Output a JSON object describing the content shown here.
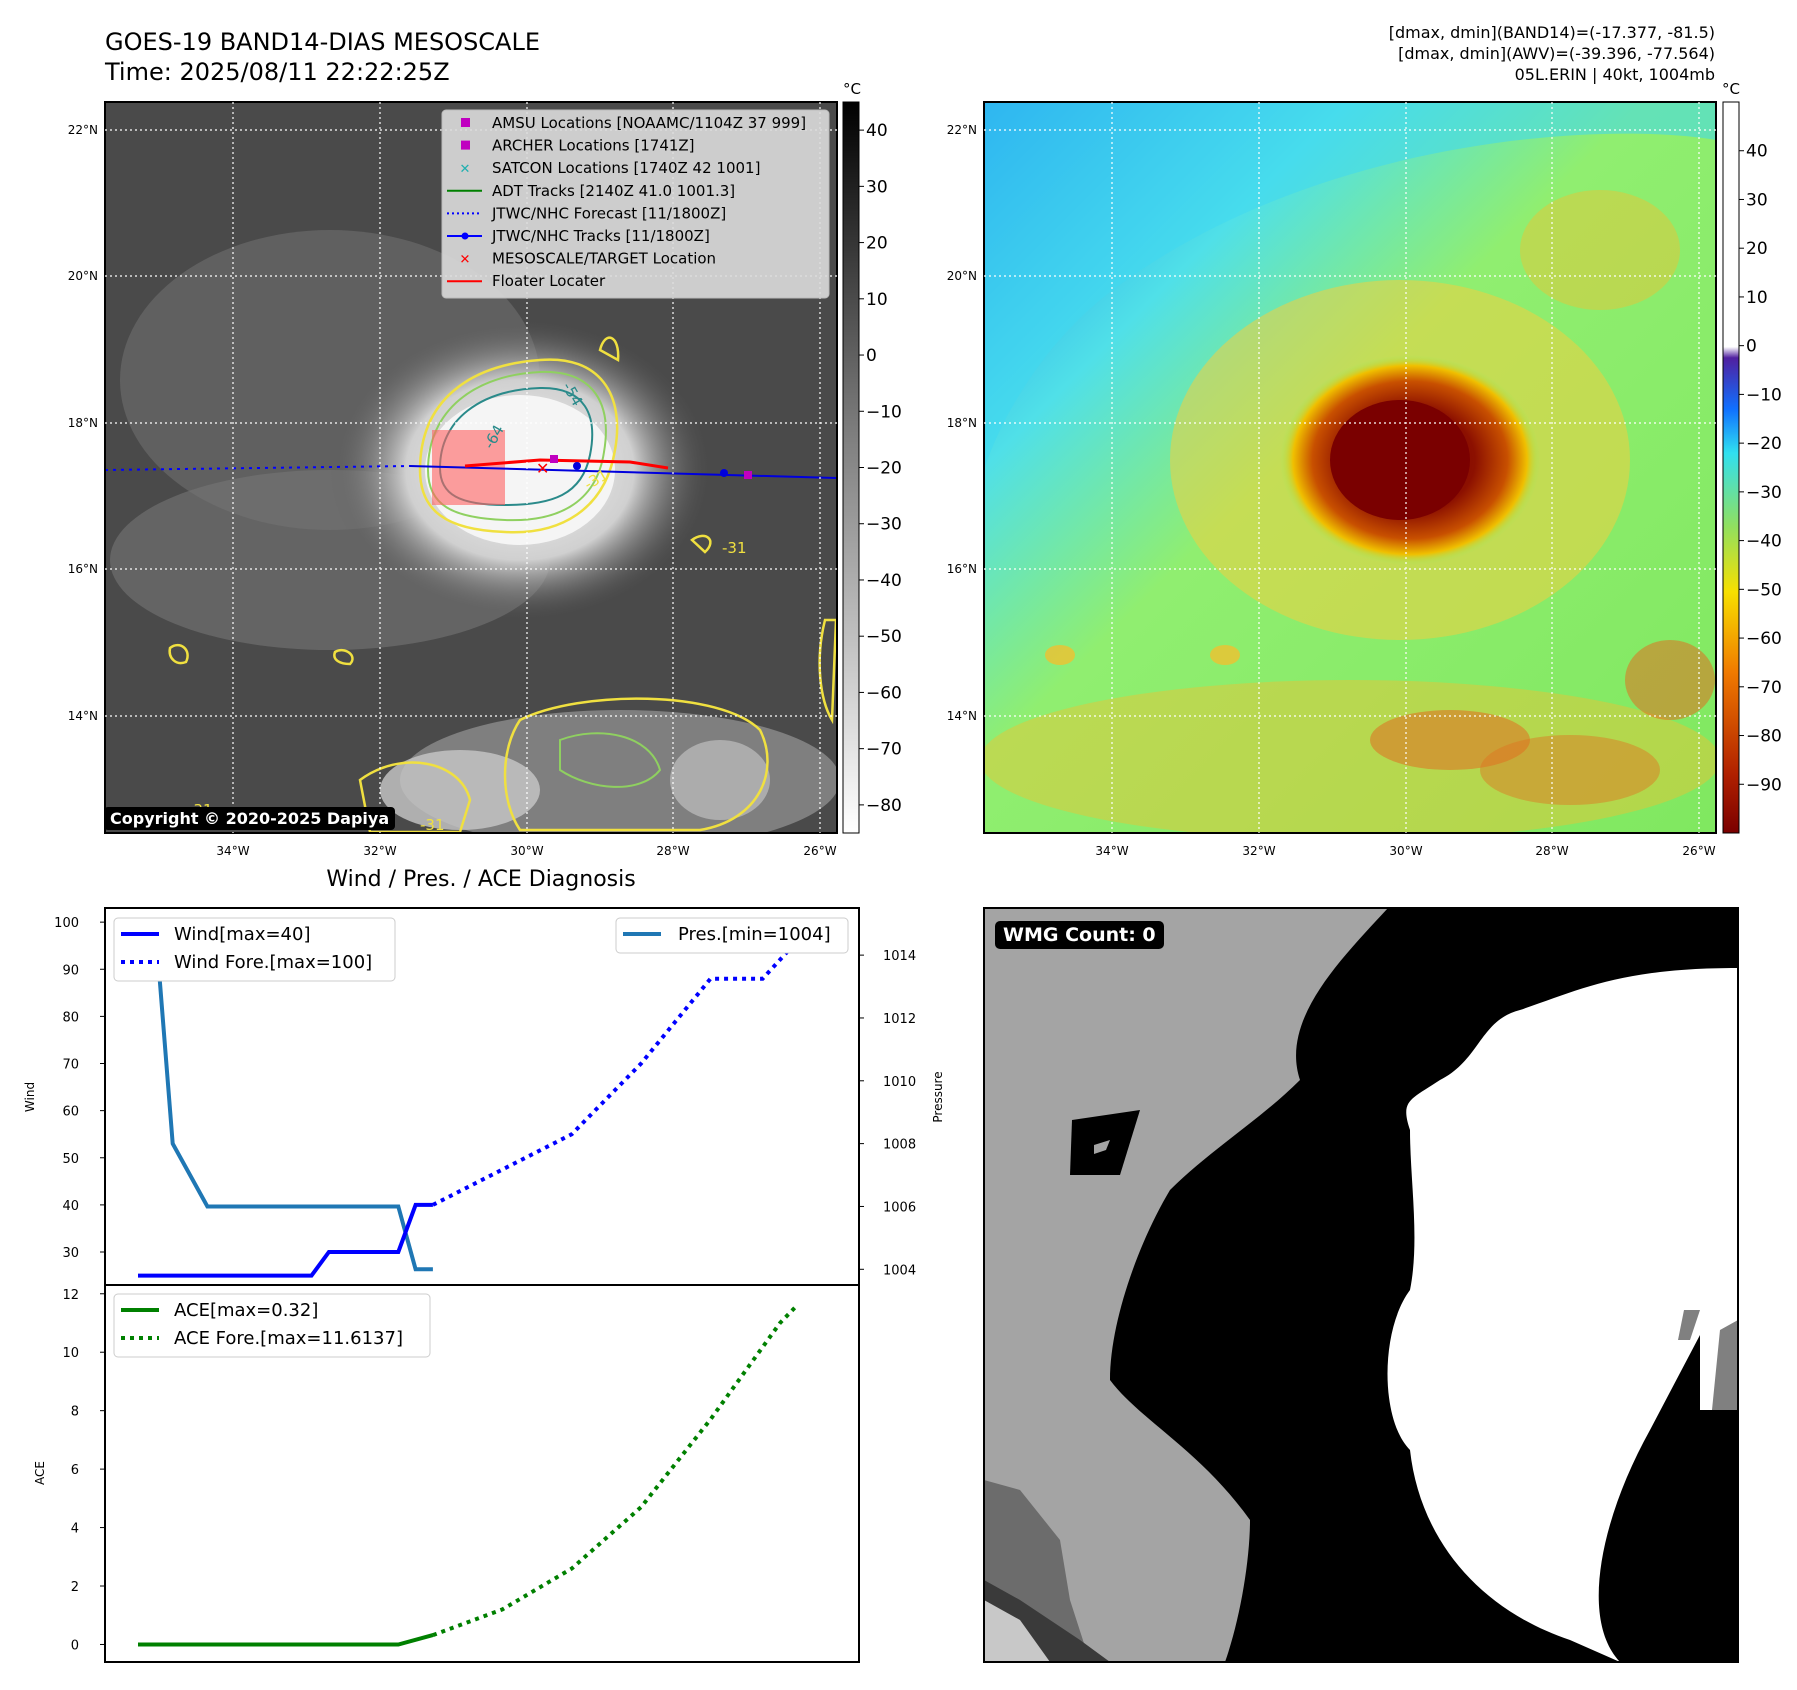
{
  "header": {
    "title": "GOES-19 BAND14-DIAS MESOSCALE",
    "time": "Time: 2025/08/11 22:22:25Z",
    "info1": "[dmax, dmin](BAND14)=(-17.377, -81.5)",
    "info2": "[dmax, dmin](AWV)=(-39.396, -77.564)",
    "info3": "05L.ERIN | 40kt, 1004mb"
  },
  "maps": {
    "lat_labels": [
      "22°N",
      "20°N",
      "18°N",
      "16°N",
      "14°N"
    ],
    "lon_labels": [
      "34°W",
      "32°W",
      "30°W",
      "28°W",
      "26°W"
    ],
    "unit": "°C",
    "cbar_left_ticks": [
      "40",
      "30",
      "20",
      "10",
      "0",
      "−10",
      "−20",
      "−30",
      "−40",
      "−50",
      "−60",
      "−70",
      "−80"
    ],
    "cbar_right_ticks": [
      "40",
      "30",
      "20",
      "10",
      "0",
      "−10",
      "−20",
      "−30",
      "−40",
      "−50",
      "−60",
      "−70",
      "−80",
      "−90"
    ],
    "copyright": "Copyright © 2020-2025 Dapiya",
    "contour_labels": [
      "-64",
      "-54",
      "-31",
      "-31",
      "-31",
      "-31"
    ]
  },
  "legend_map": [
    {
      "label": "AMSU Locations [NOAAMC/1104Z 37 999]",
      "color": "#c000c0",
      "symbol": "square"
    },
    {
      "label": "ARCHER Locations [1741Z]",
      "color": "#c000c0",
      "symbol": "square"
    },
    {
      "label": "SATCON Locations [1740Z 42 1001]",
      "color": "#20b0b0",
      "symbol": "x"
    },
    {
      "label": "ADT Tracks [2140Z 41.0 1001.3]",
      "color": "#008000",
      "symbol": "line"
    },
    {
      "label": "JTWC/NHC Forecast [11/1800Z]",
      "color": "#0000ff",
      "symbol": "dotted"
    },
    {
      "label": "JTWC/NHC Tracks [11/1800Z]",
      "color": "#0000ff",
      "symbol": "line-dot"
    },
    {
      "label": "MESOSCALE/TARGET Location",
      "color": "#ff0000",
      "symbol": "x"
    },
    {
      "label": "Floater Locater",
      "color": "#ff0000",
      "symbol": "line"
    }
  ],
  "diagnosis": {
    "title": "Wind / Pres. / ACE Diagnosis",
    "wind_ylabel": "Wind",
    "pres_ylabel": "Pressure",
    "ace_ylabel": "ACE",
    "legend_wind": "Wind[max=40]",
    "legend_wind_fore": "Wind Fore.[max=100]",
    "legend_pres": "Pres.[min=1004]",
    "legend_ace": "ACE[max=0.32]",
    "legend_ace_fore": "ACE Fore.[max=11.6137]"
  },
  "wmg": {
    "label": "WMG Count: 0"
  },
  "chart_data": [
    {
      "type": "line",
      "name": "wind",
      "ylim": [
        23,
        103
      ],
      "yticks": [
        30,
        40,
        50,
        60,
        70,
        80,
        90,
        100
      ],
      "series": [
        {
          "name": "Wind[max=40]",
          "x": [
            0,
            1,
            2,
            3,
            4,
            5,
            6,
            7,
            8,
            9,
            10,
            11,
            12,
            13,
            14,
            15,
            16,
            17,
            18,
            19,
            20,
            21,
            22,
            23,
            24,
            25,
            26,
            27,
            28,
            29,
            30,
            31,
            32,
            33,
            34,
            35,
            36,
            37,
            38,
            39,
            40,
            41,
            42,
            43,
            44,
            45,
            46,
            47,
            48,
            49,
            50,
            51,
            52,
            53,
            54,
            55,
            56,
            57,
            58,
            59,
            60,
            61,
            62,
            63,
            64,
            65,
            66,
            67,
            68,
            69,
            70,
            71,
            72,
            73,
            74,
            75,
            76,
            77,
            78,
            79,
            80,
            81,
            82,
            83,
            84,
            85,
            86,
            87,
            88,
            89,
            90,
            91,
            92,
            93,
            94,
            95,
            96,
            97,
            98,
            99,
            100,
            101,
            102,
            103,
            104,
            105,
            106,
            107,
            108,
            109,
            110,
            111,
            112,
            113,
            114,
            115,
            116,
            117,
            118,
            119,
            120
          ],
          "values_points": [
            [
              0,
              25
            ],
            [
              60,
              25
            ],
            [
              66,
              30
            ],
            [
              90,
              30
            ],
            [
              96,
              40
            ],
            [
              102,
              40
            ]
          ]
        },
        {
          "name": "Wind Fore.[max=100]",
          "style": "dotted",
          "values_points": [
            [
              102,
              40
            ],
            [
              150,
              55
            ],
            [
              174,
              70
            ],
            [
              198,
              88
            ],
            [
              216,
              88
            ],
            [
              234,
              100
            ]
          ]
        }
      ]
    },
    {
      "type": "line",
      "name": "pressure",
      "ylim": [
        1003.5,
        1015.5
      ],
      "yticks": [
        1004,
        1006,
        1008,
        1010,
        1012,
        1014
      ],
      "series": [
        {
          "name": "Pres.[min=1004]",
          "values_points": [
            [
              0,
              1015
            ],
            [
              6,
              1015
            ],
            [
              12,
              1008
            ],
            [
              24,
              1006
            ],
            [
              90,
              1006
            ],
            [
              96,
              1004
            ],
            [
              102,
              1004
            ]
          ]
        }
      ]
    },
    {
      "type": "line",
      "name": "ace",
      "ylim": [
        -0.6,
        12.3
      ],
      "yticks": [
        0,
        2,
        4,
        6,
        8,
        10,
        12
      ],
      "series": [
        {
          "name": "ACE[max=0.32]",
          "values_points": [
            [
              0,
              0
            ],
            [
              90,
              0
            ],
            [
              102,
              0.32
            ]
          ]
        },
        {
          "name": "ACE Fore.[max=11.6137]",
          "style": "dotted",
          "values_points": [
            [
              102,
              0.32
            ],
            [
              126,
              1.2
            ],
            [
              150,
              2.6
            ],
            [
              174,
              4.7
            ],
            [
              198,
              7.7
            ],
            [
              222,
              11.0
            ],
            [
              228,
              11.6137
            ]
          ]
        }
      ]
    }
  ]
}
